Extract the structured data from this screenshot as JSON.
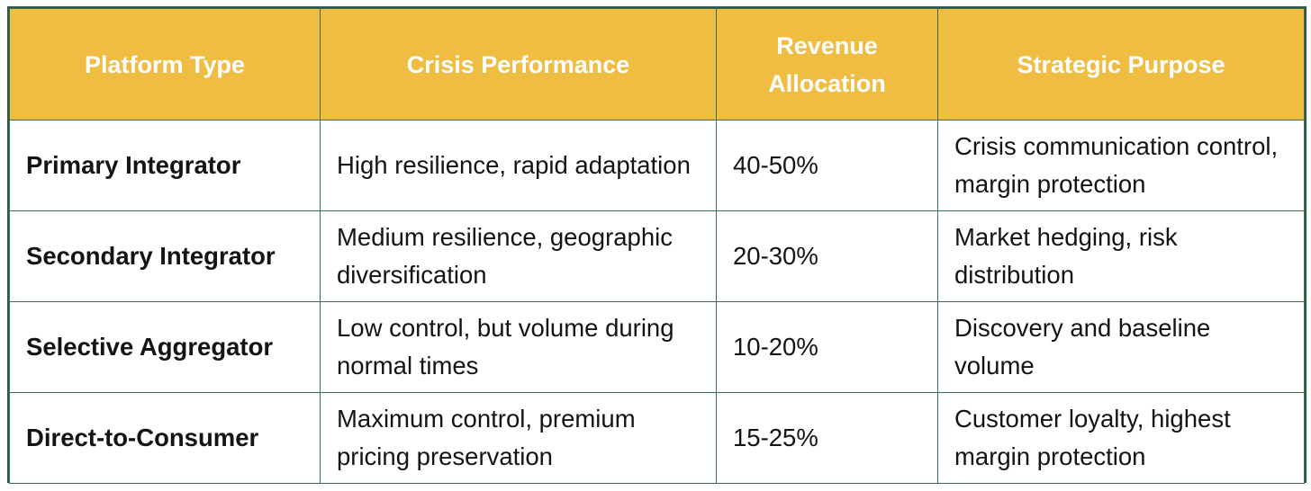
{
  "table": {
    "headers": [
      "Platform Type",
      "Crisis Performance",
      "Revenue Allocation",
      "Strategic Purpose"
    ],
    "rows": [
      {
        "platform_type": "Primary Integrator",
        "crisis_performance": "High resilience, rapid adaptation",
        "revenue_allocation": "40-50%",
        "strategic_purpose": "Crisis communication control, margin protection"
      },
      {
        "platform_type": "Secondary Integrator",
        "crisis_performance": "Medium resilience, geographic diversification",
        "revenue_allocation": "20-30%",
        "strategic_purpose": "Market hedging, risk distribution"
      },
      {
        "platform_type": "Selective Aggregator",
        "crisis_performance": "Low control, but volume during normal times",
        "revenue_allocation": "10-20%",
        "strategic_purpose": "Discovery and baseline volume"
      },
      {
        "platform_type": "Direct-to-Consumer",
        "crisis_performance": "Maximum control, premium pricing preservation",
        "revenue_allocation": "15-25%",
        "strategic_purpose": "Customer loyalty, highest margin protection"
      }
    ]
  },
  "colors": {
    "header_background": "#efbd42",
    "header_text": "#ffffff",
    "border": "#2f5a43",
    "body_text": "#141414"
  }
}
